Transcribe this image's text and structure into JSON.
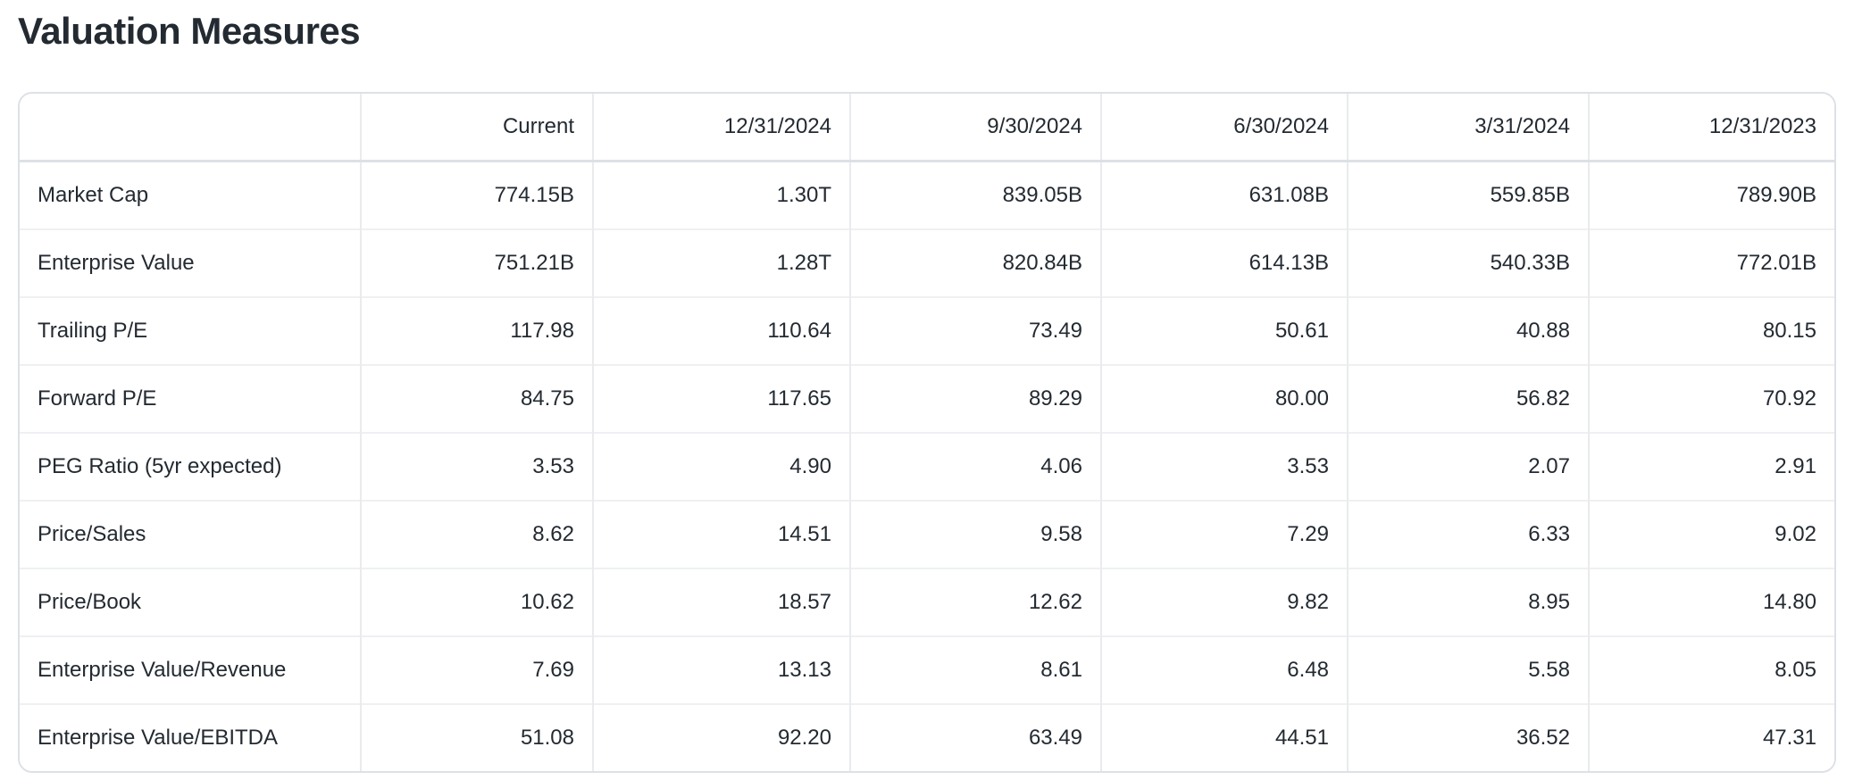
{
  "page": {
    "section_heading": "Valuation Measures"
  },
  "colors": {
    "text": "#232a31",
    "background": "#ffffff",
    "table_outer_border": "#dde1e6",
    "header_separator": "#dde1e6",
    "row_separator": "#eef0f2",
    "column_separator": "#e9ebee"
  },
  "chart_data": {
    "type": "table",
    "title": "Valuation Measures",
    "columns": [
      "",
      "Current",
      "12/31/2024",
      "9/30/2024",
      "6/30/2024",
      "3/31/2024",
      "12/31/2023"
    ],
    "rows": [
      {
        "metric": "Market Cap",
        "values": [
          "774.15B",
          "1.30T",
          "839.05B",
          "631.08B",
          "559.85B",
          "789.90B"
        ]
      },
      {
        "metric": "Enterprise Value",
        "values": [
          "751.21B",
          "1.28T",
          "820.84B",
          "614.13B",
          "540.33B",
          "772.01B"
        ]
      },
      {
        "metric": "Trailing P/E",
        "values": [
          "117.98",
          "110.64",
          "73.49",
          "50.61",
          "40.88",
          "80.15"
        ]
      },
      {
        "metric": "Forward P/E",
        "values": [
          "84.75",
          "117.65",
          "89.29",
          "80.00",
          "56.82",
          "70.92"
        ]
      },
      {
        "metric": "PEG Ratio (5yr expected)",
        "values": [
          "3.53",
          "4.90",
          "4.06",
          "3.53",
          "2.07",
          "2.91"
        ]
      },
      {
        "metric": "Price/Sales",
        "values": [
          "8.62",
          "14.51",
          "9.58",
          "7.29",
          "6.33",
          "9.02"
        ]
      },
      {
        "metric": "Price/Book",
        "values": [
          "10.62",
          "18.57",
          "12.62",
          "9.82",
          "8.95",
          "14.80"
        ]
      },
      {
        "metric": "Enterprise Value/Revenue",
        "values": [
          "7.69",
          "13.13",
          "8.61",
          "6.48",
          "5.58",
          "8.05"
        ]
      },
      {
        "metric": "Enterprise Value/EBITDA",
        "values": [
          "51.08",
          "92.20",
          "63.49",
          "44.51",
          "36.52",
          "47.31"
        ]
      }
    ]
  }
}
